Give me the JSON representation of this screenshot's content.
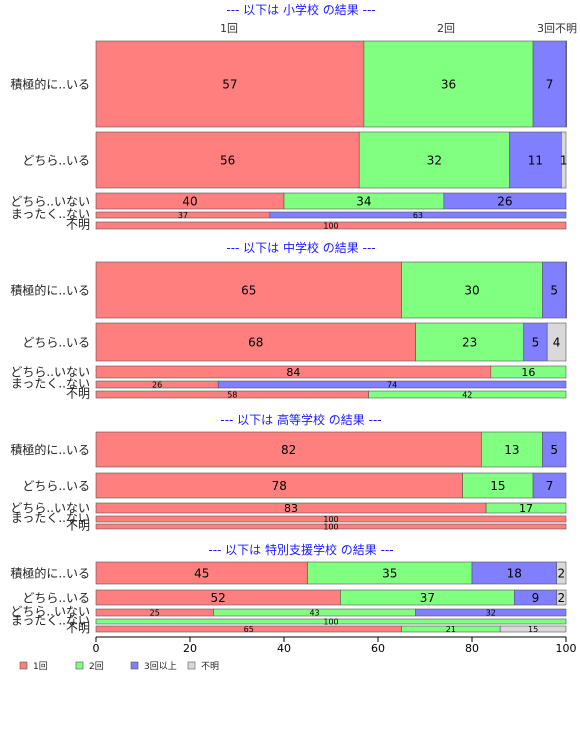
{
  "chart_data": {
    "type": "bar",
    "orientation": "horizontal",
    "stacked": true,
    "xlim": [
      0,
      100
    ],
    "xticks": [
      0,
      20,
      40,
      60,
      80,
      100
    ],
    "series_names": [
      "1回",
      "2回",
      "3回以上",
      "不明"
    ],
    "column_headers": [
      "1回",
      "2回",
      "3回",
      "不明"
    ],
    "colors": [
      "#ff7f7f",
      "#80ff80",
      "#7f7fff",
      "#d9d9d9"
    ],
    "panels": [
      {
        "title": "--- 以下は 小学校 の結果 ---",
        "rows": [
          {
            "label": "積極的に..いる",
            "values": [
              57,
              36,
              7,
              0.4
            ],
            "labels": [
              "57",
              "36",
              "7",
              ""
            ]
          },
          {
            "label": "どちら..いる",
            "values": [
              56,
              32,
              11,
              1
            ],
            "labels": [
              "56",
              "32",
              "11",
              "1"
            ]
          },
          {
            "label": "どちら..いない",
            "values": [
              40,
              34,
              26,
              0
            ],
            "labels": [
              "40",
              "34",
              "26",
              ""
            ]
          },
          {
            "label": "まったく..ない",
            "values": [
              37,
              0,
              63,
              0
            ],
            "labels": [
              "37",
              "",
              "63",
              ""
            ]
          },
          {
            "label": "不明",
            "values": [
              100,
              0,
              0,
              0
            ],
            "labels": [
              "100",
              "",
              "",
              ""
            ]
          }
        ]
      },
      {
        "title": "--- 以下は 中学校 の結果 ---",
        "rows": [
          {
            "label": "積極的に..いる",
            "values": [
              65,
              30,
              5,
              0.3
            ],
            "labels": [
              "65",
              "30",
              "5",
              ""
            ]
          },
          {
            "label": "どちら..いる",
            "values": [
              68,
              23,
              5,
              4
            ],
            "labels": [
              "68",
              "23",
              "5",
              "4"
            ]
          },
          {
            "label": "どちら..いない",
            "values": [
              84,
              16,
              0,
              0
            ],
            "labels": [
              "84",
              "16",
              "",
              ""
            ]
          },
          {
            "label": "まったく..ない",
            "values": [
              26,
              0,
              74,
              0
            ],
            "labels": [
              "26",
              "",
              "74",
              ""
            ]
          },
          {
            "label": "不明",
            "values": [
              58,
              42,
              0,
              0
            ],
            "labels": [
              "58",
              "42",
              "",
              ""
            ]
          }
        ]
      },
      {
        "title": "--- 以下は 高等学校 の結果 ---",
        "rows": [
          {
            "label": "積極的に..いる",
            "values": [
              82,
              13,
              5,
              0
            ],
            "labels": [
              "82",
              "13",
              "5",
              ""
            ]
          },
          {
            "label": "どちら..いる",
            "values": [
              78,
              15,
              7,
              0
            ],
            "labels": [
              "78",
              "15",
              "7",
              ""
            ]
          },
          {
            "label": "どちら..いない",
            "values": [
              83,
              17,
              0,
              0
            ],
            "labels": [
              "83",
              "17",
              "",
              ""
            ]
          },
          {
            "label": "まったく..ない",
            "values": [
              100,
              0,
              0,
              0
            ],
            "labels": [
              "100",
              "",
              "",
              ""
            ]
          },
          {
            "label": "不明",
            "values": [
              100,
              0,
              0,
              0
            ],
            "labels": [
              "100",
              "",
              "",
              ""
            ]
          }
        ]
      },
      {
        "title": "--- 以下は 特別支援学校 の結果 ---",
        "rows": [
          {
            "label": "積極的に..いる",
            "values": [
              45,
              35,
              18,
              2
            ],
            "labels": [
              "45",
              "35",
              "18",
              "2"
            ]
          },
          {
            "label": "どちら..いる",
            "values": [
              52,
              37,
              9,
              2
            ],
            "labels": [
              "52",
              "37",
              "9",
              "2"
            ]
          },
          {
            "label": "どちら..いない",
            "values": [
              25,
              43,
              32,
              0
            ],
            "labels": [
              "25",
              "43",
              "32",
              ""
            ]
          },
          {
            "label": "まったく..ない",
            "values": [
              0,
              100,
              0,
              0
            ],
            "labels": [
              "",
              "100",
              "",
              ""
            ]
          },
          {
            "label": "不明",
            "values": [
              65,
              21,
              0,
              15
            ],
            "labels": [
              "65",
              "21",
              "",
              "15"
            ]
          }
        ]
      }
    ],
    "legend": {
      "position": "bottom-left",
      "entries": [
        "1回",
        "2回",
        "3回以上",
        "不明"
      ]
    }
  }
}
